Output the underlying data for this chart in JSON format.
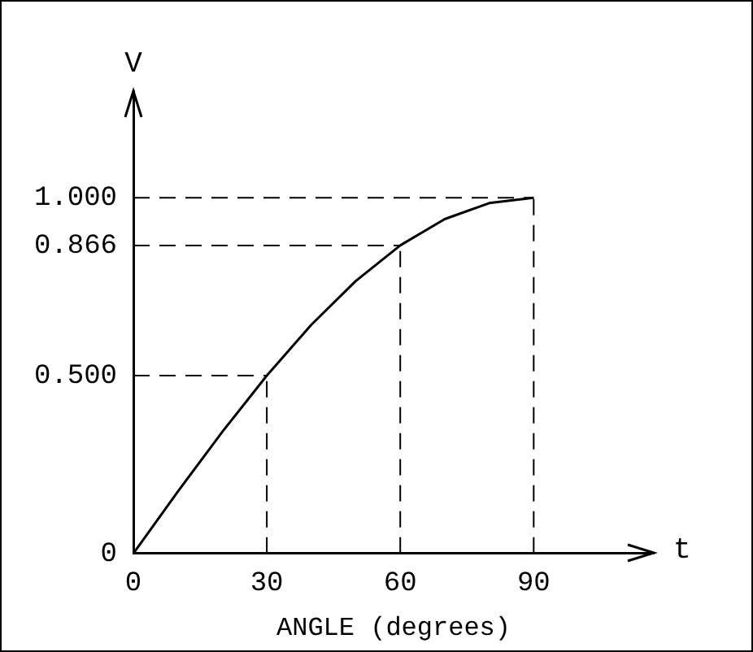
{
  "chart_data": {
    "type": "line",
    "ylabel": "V",
    "xlabel": "ANGLE (degrees)",
    "annotations": [
      "t"
    ],
    "x": [
      0,
      10,
      20,
      30,
      40,
      50,
      60,
      70,
      80,
      90
    ],
    "series": [
      {
        "color": "#000000",
        "values": [
          0,
          0.174,
          0.342,
          0.5,
          0.643,
          0.766,
          0.866,
          0.94,
          0.985,
          1
        ]
      }
    ],
    "xlim": [
      0,
      117
    ],
    "ylim": [
      0,
      1.3
    ],
    "xticks": [
      0,
      30,
      60,
      90
    ],
    "yticks": [
      0,
      {
        "value": 0.5,
        "label": "0.500"
      },
      {
        "value": 0.866,
        "label": "0.866"
      },
      {
        "value": 1,
        "label": "1.000"
      }
    ],
    "ref_lines": [
      {
        "axis": "x",
        "value": 30,
        "line_style": "dashed"
      },
      {
        "axis": "x",
        "value": 60,
        "line_style": "dashed"
      },
      {
        "axis": "x",
        "value": 90,
        "line_style": "dashed"
      },
      {
        "axis": "y",
        "value": 0.5,
        "line_style": "dashed"
      },
      {
        "axis": "y",
        "value": 0.866,
        "line_style": "dashed"
      },
      {
        "axis": "y",
        "value": 1,
        "line_style": "dashed"
      }
    ],
    "grid": false,
    "legend": false,
    "marker": "none",
    "line_style": "solid"
  }
}
